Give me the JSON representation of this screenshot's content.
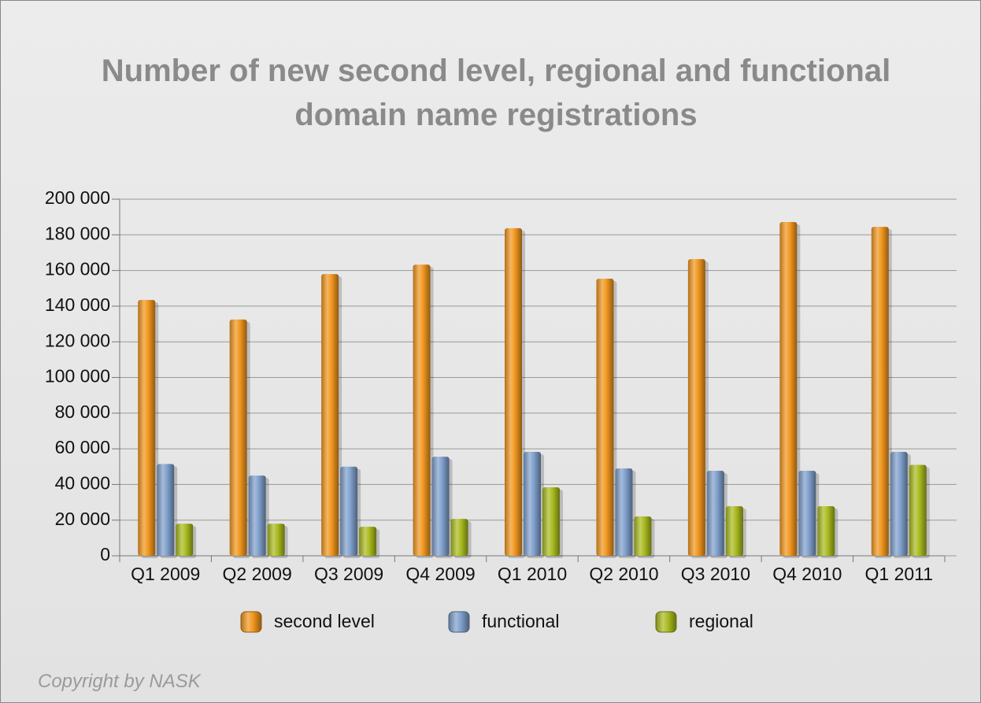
{
  "chart_data": {
    "type": "bar",
    "title": "Number of new second level, regional and functional domain name registrations",
    "categories": [
      "Q1 2009",
      "Q2 2009",
      "Q3 2009",
      "Q4 2009",
      "Q1 2010",
      "Q2 2010",
      "Q3 2010",
      "Q4 2010",
      "Q1 2011"
    ],
    "series": [
      {
        "name": "second level",
        "color": "#f0961e",
        "values": [
          143500,
          132500,
          158000,
          163300,
          183700,
          155400,
          166400,
          187200,
          184500
        ]
      },
      {
        "name": "functional",
        "color": "#7f9fcb",
        "values": [
          51500,
          45000,
          50000,
          55600,
          58300,
          49000,
          47700,
          47700,
          58300
        ]
      },
      {
        "name": "regional",
        "color": "#a9ba1e",
        "values": [
          18000,
          18000,
          16300,
          20700,
          38400,
          22100,
          27800,
          27800,
          51000
        ]
      }
    ],
    "ylim": [
      0,
      200000
    ],
    "yticks": [
      0,
      {
        "value": 20000,
        "label": "20 000"
      },
      {
        "value": 40000,
        "label": "40 000"
      },
      {
        "value": 60000,
        "label": "60 000"
      },
      {
        "value": 80000,
        "label": "80 000"
      },
      {
        "value": 100000,
        "label": "100 000"
      },
      {
        "value": 120000,
        "label": "120 000"
      },
      {
        "value": 140000,
        "label": "140 000"
      },
      {
        "value": 160000,
        "label": "160 000"
      },
      {
        "value": 180000,
        "label": "180 000"
      },
      {
        "value": 200000,
        "label": "200 000"
      }
    ],
    "grid": true,
    "legend": "bottom",
    "copyright": "Copyright by NASK"
  }
}
